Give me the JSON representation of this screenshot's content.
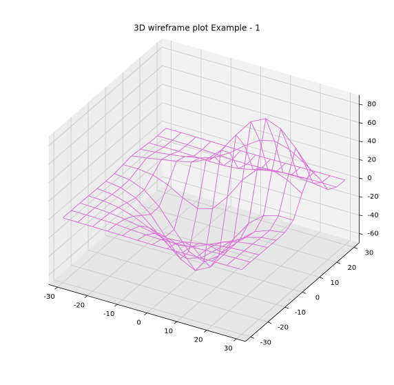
{
  "chart_data": {
    "type": "wireframe",
    "title": "3D wireframe plot Example - 1",
    "color": "#da70d6",
    "grid": true,
    "x": [
      -30,
      -25,
      -20,
      -15,
      -10,
      -5,
      0,
      5,
      10,
      15,
      20,
      25,
      30
    ],
    "y": [
      -30,
      -25,
      -20,
      -15,
      -10,
      -5,
      0,
      5,
      10,
      15,
      20,
      25,
      30
    ],
    "z": [
      [
        0,
        0,
        -0.1,
        -0.3,
        -0.5,
        -0.8,
        -0.9,
        -0.8,
        -0.5,
        -0.3,
        -0.1,
        0,
        0
      ],
      [
        0,
        -0.2,
        -0.5,
        -1.1,
        -2.1,
        -3.1,
        -3.5,
        -3.1,
        -2.1,
        -1.1,
        -0.5,
        -0.2,
        0
      ],
      [
        -0.1,
        -0.5,
        -1.5,
        -3.5,
        -6.5,
        -9.5,
        -10.8,
        -9.5,
        -6.5,
        -3.5,
        -1.5,
        -0.5,
        -0.1
      ],
      [
        -0.3,
        -1.1,
        -3.5,
        -8.4,
        -15.7,
        -22.8,
        -25.8,
        -22.8,
        -15.7,
        -8.4,
        -3.5,
        -1.1,
        -0.3
      ],
      [
        -0.5,
        -2.1,
        -6.5,
        -15.7,
        -29.3,
        -42.6,
        -48.2,
        -42.6,
        -29.2,
        -15.6,
        -6.5,
        -2.1,
        -0.5
      ],
      [
        -0.7,
        -3.0,
        -9.3,
        -22.5,
        -42.1,
        -61.3,
        -69.3,
        -60.9,
        -41.4,
        -21.7,
        -8.6,
        -2.4,
        -0.3
      ],
      [
        -0.5,
        -2.5,
        -8.8,
        -22.3,
        -42.4,
        -61.5,
        -68.1,
        -56.7,
        -33.9,
        -12.3,
        0.7,
        5.2,
        5.0
      ],
      [
        1.1,
        1.2,
        -0.8,
        -6.8,
        -16.1,
        -23.0,
        -18.7,
        -1.1,
        21.8,
        38.1,
        42.0,
        36.0,
        25.7
      ],
      [
        2.5,
        4.9,
        7.8,
        10.8,
        14.4,
        21.8,
        36.7,
        57.8,
        76.8,
        84.7,
        78.4,
        62.2,
        43.1
      ],
      [
        1.6,
        3.1,
        5.2,
        7.7,
        10.8,
        16.2,
        25.7,
        38.1,
        48.7,
        52.5,
        48.0,
        37.9,
        26.2
      ],
      [
        0.3,
        0.5,
        0.5,
        0.1,
        -0.6,
        -0.8,
        0.7,
        4.1,
        7.8,
        10.1,
        10.0,
        8.2,
        5.8
      ],
      [
        0,
        -0.1,
        -0.3,
        -0.8,
        -1.6,
        -2.4,
        -2.6,
        -2.0,
        -0.9,
        0,
        0.5,
        0.6,
        0.4
      ],
      [
        0,
        0,
        -0.1,
        -0.3,
        -0.5,
        -0.8,
        -0.9,
        -0.8,
        -0.5,
        -0.3,
        -0.1,
        0,
        0
      ]
    ],
    "xlim": [
      -33,
      33
    ],
    "ylim": [
      -33,
      33
    ],
    "zlim": [
      -70,
      90
    ],
    "xticks": [
      -30,
      -20,
      -10,
      0,
      10,
      20,
      30
    ],
    "yticks": [
      -30,
      -20,
      -10,
      0,
      10,
      20,
      30
    ],
    "zticks": [
      -60,
      -40,
      -20,
      0,
      20,
      40,
      60,
      80
    ]
  }
}
